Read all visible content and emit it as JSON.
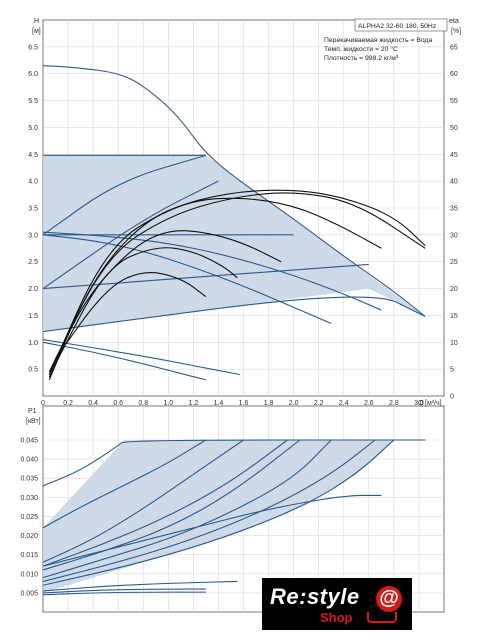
{
  "info": {
    "model": "ALPHA2 32-60 180, 50Hz",
    "line1": "Перекачиваемая жидкость = Вода",
    "line2": "Темп. жидкости = 20 °C",
    "line3": "Плотность = 998.2 кг/м³"
  },
  "chart_data": [
    {
      "type": "line",
      "ylabel": "H",
      "yunit": "[м]",
      "y2label": "eta",
      "y2unit": "[%]",
      "xlabel": "Q",
      "xunit": "[м³/ч]",
      "xlim": [
        0,
        3.2
      ],
      "ylim": [
        0,
        7
      ],
      "y2lim": [
        0,
        70
      ],
      "grid": true,
      "xticks": [
        "0",
        "0.2",
        "0.4",
        "0.6",
        "0.8",
        "1.0",
        "1.2",
        "1.4",
        "1.6",
        "1.8",
        "2.0",
        "2.2",
        "2.4",
        "2.6",
        "2.8",
        "3.0"
      ],
      "yticks": [
        "0.5",
        "1.0",
        "1.5",
        "2.0",
        "2.5",
        "3.0",
        "3.5",
        "4.0",
        "4.5",
        "5.0",
        "5.5",
        "6.0",
        "6.5"
      ],
      "y2ticks": [
        "0",
        "5",
        "10",
        "15",
        "20",
        "25",
        "30",
        "35",
        "40",
        "45",
        "50",
        "55",
        "60",
        "65"
      ],
      "operating_area": [
        [
          0,
          4.48
        ],
        [
          1.3,
          4.48
        ],
        [
          3.05,
          1.48
        ],
        [
          2.6,
          2.0
        ],
        [
          0,
          1.2
        ]
      ],
      "series": [
        {
          "kind": "head",
          "points": [
            [
              0,
              6.15
            ],
            [
              0.25,
              6.12
            ],
            [
              0.65,
              6.0
            ],
            [
              0.9,
              5.6
            ],
            [
              1.1,
              5.15
            ],
            [
              1.3,
              4.5
            ],
            [
              1.6,
              3.95
            ],
            [
              2.0,
              3.3
            ],
            [
              2.4,
              2.6
            ],
            [
              2.8,
              1.95
            ],
            [
              3.05,
              1.48
            ]
          ]
        },
        {
          "kind": "head",
          "points": [
            [
              0,
              4.48
            ],
            [
              1.3,
              4.48
            ]
          ]
        },
        {
          "kind": "head",
          "points": [
            [
              0,
              3.05
            ],
            [
              0.5,
              2.98
            ],
            [
              1.0,
              2.85
            ],
            [
              1.5,
              2.6
            ],
            [
              2.0,
              2.25
            ],
            [
              2.4,
              1.9
            ],
            [
              2.7,
              1.6
            ]
          ]
        },
        {
          "kind": "head",
          "points": [
            [
              0,
              3.0
            ],
            [
              0.4,
              2.9
            ],
            [
              0.8,
              2.7
            ],
            [
              1.2,
              2.4
            ],
            [
              1.6,
              2.05
            ],
            [
              2.0,
              1.65
            ],
            [
              2.3,
              1.35
            ]
          ]
        },
        {
          "kind": "head",
          "points": [
            [
              0,
              3.0
            ],
            [
              2.0,
              3.0
            ]
          ]
        },
        {
          "kind": "head",
          "points": [
            [
              0,
              2.0
            ],
            [
              2.6,
              2.45
            ]
          ]
        },
        {
          "kind": "head",
          "points": [
            [
              0,
              1.2
            ],
            [
              2.6,
              2.0
            ],
            [
              3.05,
              1.48
            ]
          ]
        },
        {
          "kind": "head",
          "points": [
            [
              0,
              1.05
            ],
            [
              0.4,
              0.9
            ],
            [
              0.9,
              0.7
            ],
            [
              1.3,
              0.52
            ],
            [
              1.57,
              0.4
            ]
          ]
        },
        {
          "kind": "head",
          "points": [
            [
              0,
              1.0
            ],
            [
              0.4,
              0.82
            ],
            [
              0.8,
              0.6
            ],
            [
              1.1,
              0.42
            ],
            [
              1.3,
              0.3
            ]
          ]
        },
        {
          "kind": "head",
          "points": [
            [
              0,
              3.0
            ],
            [
              0.6,
              4.0
            ],
            [
              1.3,
              4.48
            ]
          ]
        },
        {
          "kind": "head",
          "points": [
            [
              0,
              2.0
            ],
            [
              0.8,
              3.3
            ],
            [
              1.4,
              4.0
            ]
          ]
        },
        {
          "kind": "eta",
          "points": [
            [
              0.05,
              0.3
            ],
            [
              0.3,
              1.7
            ],
            [
              0.7,
              2.75
            ],
            [
              1.0,
              3.1
            ],
            [
              1.3,
              3.05
            ],
            [
              1.6,
              2.85
            ],
            [
              1.9,
              2.5
            ]
          ]
        },
        {
          "kind": "eta",
          "points": [
            [
              0.05,
              0.35
            ],
            [
              0.4,
              2.2
            ],
            [
              0.8,
              3.25
            ],
            [
              1.2,
              3.65
            ],
            [
              1.6,
              3.7
            ],
            [
              2.0,
              3.55
            ],
            [
              2.35,
              3.2
            ],
            [
              2.7,
              2.75
            ]
          ]
        },
        {
          "kind": "eta",
          "points": [
            [
              0.05,
              0.4
            ],
            [
              0.5,
              2.75
            ],
            [
              1.0,
              3.5
            ],
            [
              1.5,
              3.8
            ],
            [
              2.0,
              3.85
            ],
            [
              2.4,
              3.7
            ],
            [
              2.8,
              3.35
            ],
            [
              3.05,
              2.8
            ]
          ]
        },
        {
          "kind": "eta",
          "points": [
            [
              0.05,
              0.45
            ],
            [
              0.5,
              2.6
            ],
            [
              1.0,
              3.35
            ],
            [
              1.5,
              3.7
            ],
            [
              2.0,
              3.82
            ],
            [
              2.5,
              3.6
            ],
            [
              3.05,
              2.75
            ]
          ]
        },
        {
          "kind": "eta",
          "points": [
            [
              0.1,
              0.6
            ],
            [
              0.5,
              2.4
            ],
            [
              0.9,
              2.8
            ],
            [
              1.2,
              2.7
            ],
            [
              1.45,
              2.4
            ],
            [
              1.55,
              2.2
            ]
          ]
        },
        {
          "kind": "eta",
          "points": [
            [
              0.1,
              0.7
            ],
            [
              0.5,
              2.0
            ],
            [
              0.8,
              2.35
            ],
            [
              1.1,
              2.2
            ],
            [
              1.3,
              1.85
            ]
          ]
        }
      ]
    },
    {
      "type": "line",
      "ylabel": "P1",
      "yunit": "[кВт]",
      "xlim": [
        0,
        3.2
      ],
      "ylim": [
        0,
        0.045
      ],
      "grid": true,
      "yticks": [
        "0.005",
        "0.010",
        "0.015",
        "0.020",
        "0.025",
        "0.030",
        "0.035",
        "0.040",
        "0.045"
      ],
      "operating_area": [
        [
          0,
          0.013
        ],
        [
          1.3,
          0.045
        ],
        [
          3.05,
          0.045
        ],
        [
          2.6,
          0.045
        ],
        [
          1.6,
          0.045
        ],
        [
          0,
          0.005
        ]
      ],
      "series": [
        {
          "points": [
            [
              0,
              0.033
            ],
            [
              0.3,
              0.037
            ],
            [
              0.6,
              0.0435
            ],
            [
              0.65,
              0.045
            ],
            [
              3.05,
              0.045
            ]
          ]
        },
        {
          "points": [
            [
              0,
              0.022
            ],
            [
              0.3,
              0.0275
            ],
            [
              0.7,
              0.034
            ],
            [
              1.0,
              0.039
            ],
            [
              1.3,
              0.045
            ]
          ]
        },
        {
          "points": [
            [
              0,
              0.013
            ],
            [
              0.4,
              0.019
            ],
            [
              0.8,
              0.027
            ],
            [
              1.2,
              0.036
            ],
            [
              1.6,
              0.045
            ]
          ]
        },
        {
          "points": [
            [
              0,
              0.012
            ],
            [
              0.5,
              0.018
            ],
            [
              1.0,
              0.025
            ],
            [
              1.5,
              0.034
            ],
            [
              1.95,
              0.045
            ]
          ]
        },
        {
          "points": [
            [
              0,
              0.011
            ],
            [
              0.5,
              0.016
            ],
            [
              1.0,
              0.022
            ],
            [
              1.5,
              0.031
            ],
            [
              2.05,
              0.045
            ]
          ]
        },
        {
          "points": [
            [
              0,
              0.009
            ],
            [
              0.5,
              0.014
            ],
            [
              1.0,
              0.019
            ],
            [
              1.5,
              0.026
            ],
            [
              2.0,
              0.035
            ],
            [
              2.3,
              0.045
            ]
          ]
        },
        {
          "points": [
            [
              0,
              0.008
            ],
            [
              0.6,
              0.013
            ],
            [
              1.2,
              0.019
            ],
            [
              1.8,
              0.027
            ],
            [
              2.3,
              0.036
            ],
            [
              2.65,
              0.045
            ]
          ]
        },
        {
          "points": [
            [
              0,
              0.012
            ],
            [
              0.6,
              0.017
            ],
            [
              1.2,
              0.022
            ],
            [
              1.8,
              0.027
            ],
            [
              2.4,
              0.0305
            ],
            [
              2.7,
              0.0305
            ]
          ]
        },
        {
          "points": [
            [
              0,
              0.007
            ],
            [
              0.8,
              0.013
            ],
            [
              1.5,
              0.02
            ],
            [
              2.1,
              0.028
            ],
            [
              2.5,
              0.036
            ],
            [
              2.8,
              0.045
            ]
          ]
        },
        {
          "points": [
            [
              0,
              0.0055
            ],
            [
              0.5,
              0.0068
            ],
            [
              1.0,
              0.0075
            ],
            [
              1.55,
              0.008
            ]
          ]
        },
        {
          "points": [
            [
              0,
              0.005
            ],
            [
              0.5,
              0.0058
            ],
            [
              1.0,
              0.006
            ],
            [
              1.3,
              0.006
            ]
          ]
        },
        {
          "points": [
            [
              0,
              0.0045
            ],
            [
              0.4,
              0.005
            ],
            [
              0.8,
              0.0052
            ],
            [
              1.3,
              0.0052
            ]
          ]
        }
      ]
    }
  ],
  "logo": {
    "main": "Re:style",
    "sub": "Shop",
    "symbol": "@"
  }
}
